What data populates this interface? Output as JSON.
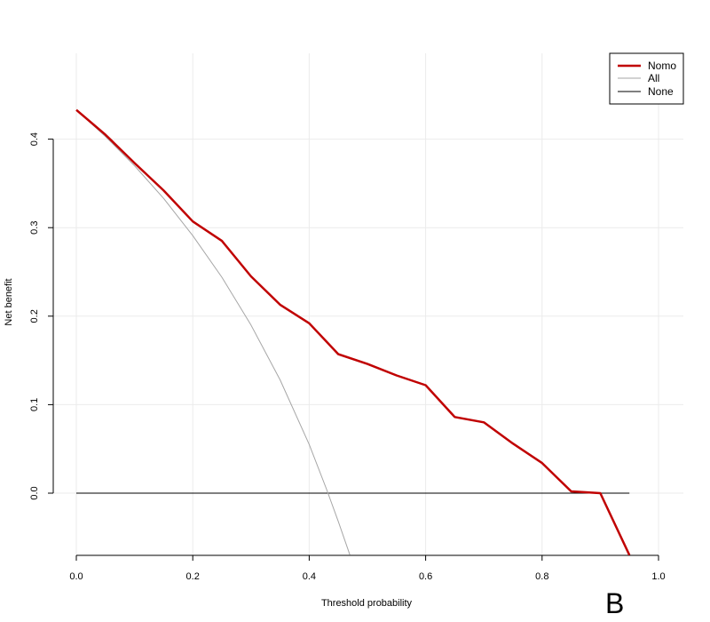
{
  "chart_data": {
    "type": "line",
    "xlabel": "Threshold probability",
    "ylabel": "Net benefit",
    "xlim": [
      0.0,
      1.0
    ],
    "ylim": [
      -0.07,
      0.44
    ],
    "x_ticks": [
      "0.0",
      "0.2",
      "0.4",
      "0.6",
      "0.8",
      "1.0"
    ],
    "y_ticks": [
      "0.0",
      "0.1",
      "0.2",
      "0.3",
      "0.4"
    ],
    "grid": true,
    "legend_position": "top-right",
    "panel_label": "B",
    "series": [
      {
        "name": "Nomo",
        "color": "#c00000",
        "x": [
          0.0,
          0.05,
          0.1,
          0.15,
          0.2,
          0.25,
          0.3,
          0.35,
          0.4,
          0.45,
          0.5,
          0.55,
          0.6,
          0.65,
          0.7,
          0.75,
          0.8,
          0.85,
          0.9,
          0.95
        ],
        "y": [
          0.433,
          0.405,
          0.373,
          0.342,
          0.307,
          0.285,
          0.245,
          0.213,
          0.192,
          0.157,
          0.146,
          0.133,
          0.122,
          0.086,
          0.08,
          0.056,
          0.034,
          0.002,
          0.0,
          -0.07
        ]
      },
      {
        "name": "All",
        "color": "#a6a6a6",
        "x": [
          0.0,
          0.05,
          0.1,
          0.15,
          0.2,
          0.25,
          0.3,
          0.35,
          0.4,
          0.43,
          0.45,
          0.47
        ],
        "y": [
          0.433,
          0.403,
          0.37,
          0.333,
          0.291,
          0.244,
          0.19,
          0.128,
          0.055,
          0.004,
          -0.032,
          -0.07
        ]
      },
      {
        "name": "None",
        "color": "#000000",
        "x": [
          0.0,
          0.95
        ],
        "y": [
          0.0,
          0.0
        ]
      }
    ]
  }
}
